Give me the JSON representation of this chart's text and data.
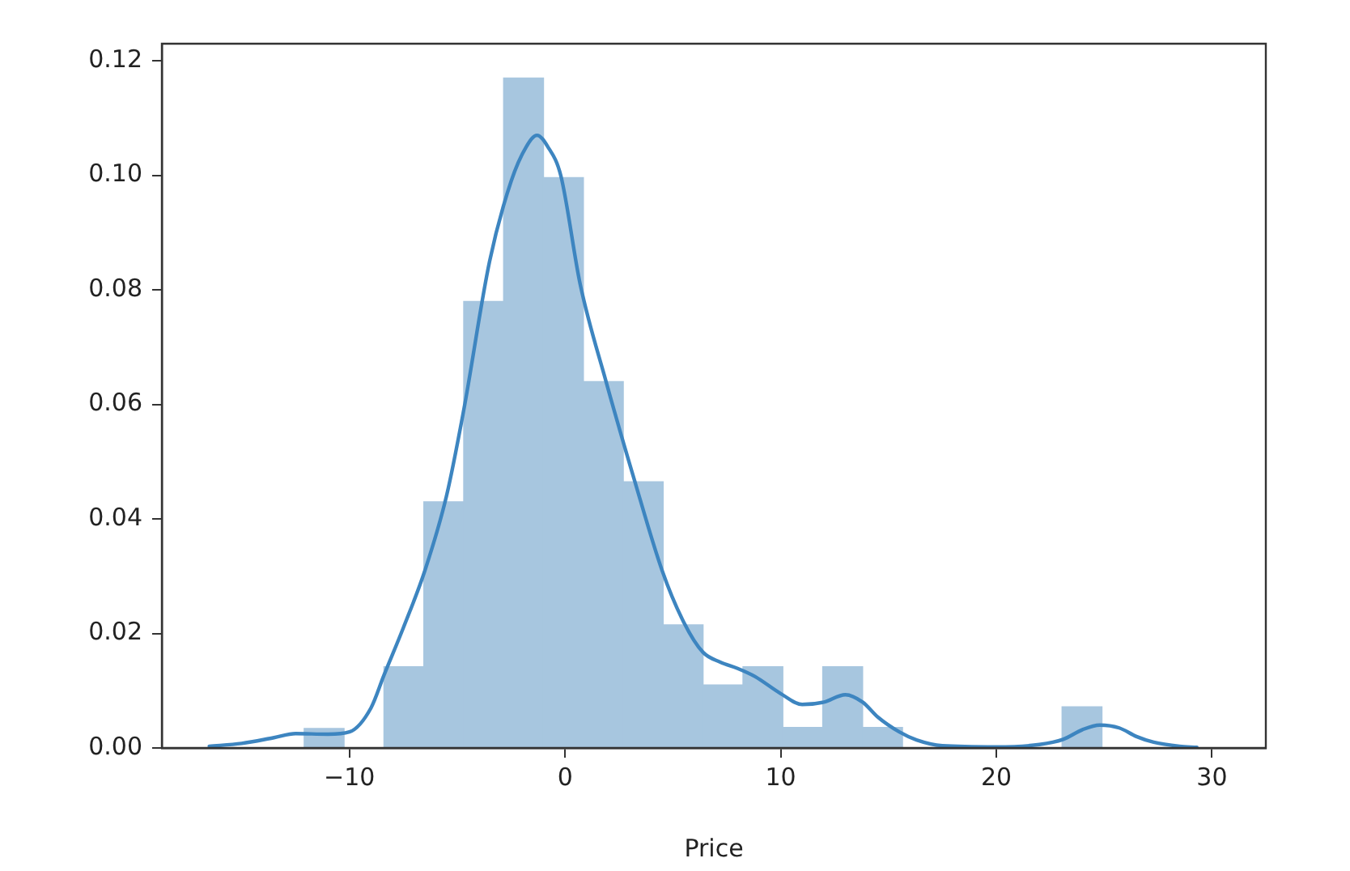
{
  "chart_data": {
    "type": "histogram",
    "xlabel": "Price",
    "color": "#a7c6df",
    "bins": [
      -12.1,
      -10.25,
      -8.4,
      -6.55,
      -4.7,
      -2.85,
      -1.0,
      0.85,
      2.7,
      4.55,
      6.4,
      8.25,
      10.1,
      11.95,
      13.8,
      15.65,
      17.5,
      19.35,
      21.2,
      23.05,
      24.9
    ],
    "values": [
      0.0034,
      0,
      0.0142,
      0.043,
      0.078,
      0.117,
      0.0996,
      0.064,
      0.0465,
      0.0215,
      0.011,
      0.0142,
      0.0036,
      0.0142,
      0.0036,
      0,
      0,
      0,
      0,
      0.0072
    ],
    "series": [
      {
        "type": "line",
        "color": "#3d85c0",
        "x": [
          -16.5,
          -15,
          -13.5,
          -12.5,
          -11,
          -10,
          -9,
          -8.4,
          -7.5,
          -6.5,
          -5.5,
          -4.7,
          -3.5,
          -2.5,
          -1.8,
          -1.3,
          -0.8,
          -0.2,
          0.7,
          1.9,
          3.2,
          4.5,
          5.5,
          6.4,
          7.2,
          8.0,
          8.8,
          10,
          11,
          12,
          13,
          13.8,
          14.5,
          15.5,
          16.3,
          17.5,
          20,
          22,
          23.1,
          24,
          24.8,
          25.7,
          26.5,
          27.3,
          28.5,
          29.3
        ],
        "values": [
          0.0003,
          0.0008,
          0.0018,
          0.0025,
          0.0024,
          0.0028,
          0.007,
          0.0127,
          0.021,
          0.031,
          0.044,
          0.059,
          0.085,
          0.099,
          0.105,
          0.107,
          0.105,
          0.1,
          0.081,
          0.064,
          0.047,
          0.031,
          0.022,
          0.0167,
          0.015,
          0.0139,
          0.0125,
          0.0095,
          0.0076,
          0.008,
          0.0093,
          0.008,
          0.0054,
          0.0028,
          0.0014,
          0.0004,
          0.0002,
          0.0006,
          0.0015,
          0.0032,
          0.004,
          0.0035,
          0.002,
          0.001,
          0.0003,
          0.0001
        ]
      }
    ],
    "xlim": [
      -18.7,
      32.5
    ],
    "ylim": [
      0,
      0.123
    ],
    "xticks": [
      {
        "value": -10,
        "label": "−10"
      },
      0,
      10,
      20,
      30
    ],
    "yticks": [
      {
        "value": 0,
        "label": "0.00"
      },
      {
        "value": 0.02,
        "label": "0.02"
      },
      {
        "value": 0.04,
        "label": "0.04"
      },
      {
        "value": 0.06,
        "label": "0.06"
      },
      {
        "value": 0.08,
        "label": "0.08"
      },
      {
        "value": 0.1,
        "label": "0.10"
      },
      {
        "value": 0.12,
        "label": "0.12"
      }
    ],
    "grid": false,
    "legend": false
  }
}
